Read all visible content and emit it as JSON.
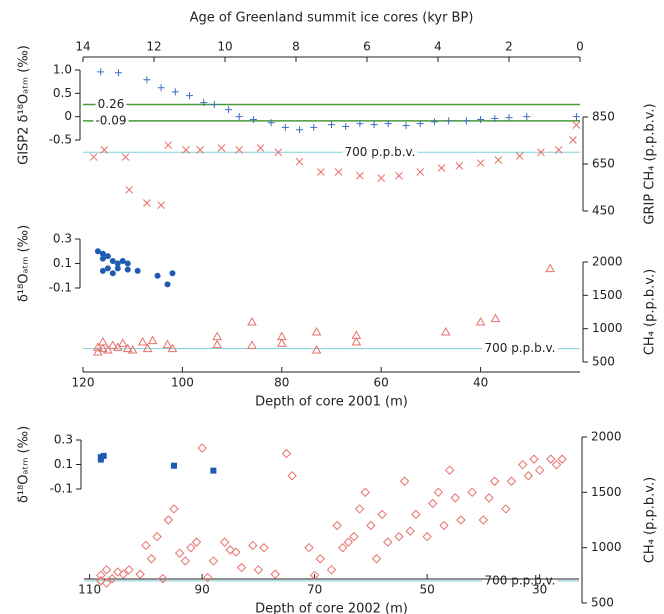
{
  "chart_data": [
    {
      "type": "scatter",
      "xlabel": "Age of Greenland summit ice cores (kyr BP)",
      "xaxis": "top",
      "xlim": [
        14,
        0
      ],
      "xticks": [
        14,
        12,
        10,
        8,
        6,
        4,
        2,
        0
      ],
      "ylabel": "GISP2 δ¹⁸Oₐₜₘ (‰)",
      "ylim": [
        -0.5,
        1.0
      ],
      "yticks": [
        {
          "value": 1.0,
          "label": "1.0"
        },
        0.5,
        0,
        -0.5
      ],
      "y2label": "GRIP CH₄ (p.p.b.v.)",
      "y2lim": [
        450,
        850
      ],
      "y2ticks": [
        850,
        650,
        450
      ],
      "hlines": [
        {
          "value": 0.26,
          "color": "#4a9a3a",
          "axis": "y"
        },
        {
          "value": -0.09,
          "color": "#4a9a3a",
          "axis": "y"
        },
        {
          "value": 700,
          "label": "700 p.p.b.v.",
          "color": "#7fcfd8",
          "axis": "y2"
        }
      ],
      "series": [
        {
          "color": "#3d6fc0",
          "marker": "plus",
          "axis": "y",
          "x": [
            13.5,
            13.0,
            12.2,
            11.8,
            11.4,
            11.0,
            10.6,
            10.3,
            9.9,
            9.6,
            9.2,
            8.7,
            8.3,
            7.9,
            7.5,
            7.0,
            6.6,
            6.2,
            5.8,
            5.4,
            4.9,
            4.5,
            4.1,
            3.7,
            3.2,
            2.8,
            2.4,
            2.0,
            1.5,
            0.1
          ],
          "values": [
            0.96,
            0.94,
            0.79,
            0.62,
            0.53,
            0.45,
            0.3,
            0.26,
            0.15,
            0.0,
            -0.06,
            -0.13,
            -0.23,
            -0.28,
            -0.23,
            -0.17,
            -0.21,
            -0.15,
            -0.17,
            -0.15,
            -0.19,
            -0.15,
            -0.11,
            -0.09,
            -0.09,
            -0.06,
            -0.04,
            -0.02,
            0.0,
            0.0
          ]
        },
        {
          "color": "#e8706a",
          "marker": "cross",
          "axis": "y2",
          "x": [
            13.7,
            13.4,
            12.8,
            12.7,
            12.2,
            11.8,
            11.6,
            11.1,
            10.7,
            10.1,
            9.6,
            9.0,
            8.5,
            7.9,
            7.3,
            6.8,
            6.2,
            5.6,
            5.1,
            4.5,
            3.9,
            3.4,
            2.8,
            2.3,
            1.7,
            1.1,
            0.6,
            0.2,
            0.1
          ],
          "values": [
            680,
            710,
            680,
            540,
            484,
            475,
            730,
            710,
            710,
            718,
            710,
            718,
            700,
            660,
            616,
            616,
            600,
            590,
            600,
            616,
            633,
            642,
            654,
            667,
            684,
            700,
            710,
            752,
            816
          ]
        }
      ]
    },
    {
      "type": "scatter",
      "xlabel": "Depth of core 2001 (m)",
      "xaxis": "bottom",
      "xlim": [
        120,
        20
      ],
      "xticks": [
        120,
        100,
        80,
        60,
        40
      ],
      "ylabel": "δ¹⁸Oₐₜₘ (‰)",
      "ylim": [
        -0.1,
        0.3
      ],
      "yticks": [
        0.3,
        0.1,
        -0.1
      ],
      "y2label": "CH₄ (p.p.b.v.)",
      "y2lim": [
        500,
        2000
      ],
      "y2ticks": [
        2000,
        1500,
        1000,
        500
      ],
      "hlines": [
        {
          "value": 700,
          "label": "700 p.p.b.v.",
          "color": "#7fcfd8",
          "axis": "y2"
        }
      ],
      "series": [
        {
          "color": "#1f5bb0",
          "marker": "dot",
          "axis": "y",
          "x": [
            117,
            116,
            116,
            115,
            114,
            113,
            112,
            111,
            115,
            114,
            116,
            113,
            109,
            105,
            102,
            103,
            111
          ],
          "values": [
            0.2,
            0.18,
            0.14,
            0.16,
            0.12,
            0.1,
            0.12,
            0.1,
            0.06,
            0.02,
            0.04,
            0.06,
            0.04,
            0.0,
            0.02,
            -0.07,
            0.05
          ]
        },
        {
          "color": "#e8706a",
          "marker": "triangle",
          "axis": "y2",
          "x": [
            117,
            116,
            115,
            114,
            113,
            112,
            111,
            110,
            108,
            107,
            106,
            103,
            102,
            93,
            93,
            86,
            86,
            80,
            80,
            73,
            73,
            65,
            65,
            47,
            40,
            37,
            26,
            117,
            116
          ],
          "values": [
            650,
            700,
            680,
            750,
            720,
            780,
            700,
            680,
            800,
            700,
            820,
            760,
            700,
            880,
            760,
            1100,
            750,
            880,
            780,
            950,
            680,
            900,
            800,
            950,
            1100,
            1150,
            1900,
            720,
            800
          ]
        }
      ]
    },
    {
      "type": "scatter",
      "xlabel": "Depth of core 2002 (m)",
      "xaxis": "bottom",
      "xlim": [
        111,
        23
      ],
      "xticks": [
        110,
        90,
        70,
        50,
        30
      ],
      "ylabel": "δ¹⁸Oₐₜₘ (‰)",
      "ylim": [
        -0.1,
        0.3
      ],
      "yticks": [
        0.3,
        0.1,
        -0.1
      ],
      "y2label": "CH₄ (p.p.b.v.)",
      "y2lim": [
        500,
        2000
      ],
      "y2ticks": [
        2000,
        1500,
        1000,
        500
      ],
      "hlines": [
        {
          "value": 700,
          "label": "700 p.p.b.v.",
          "color": "#7fcfd8",
          "axis": "y2"
        }
      ],
      "series": [
        {
          "color": "#1f5bb0",
          "marker": "square",
          "axis": "y",
          "x": [
            108,
            108,
            107.5,
            95,
            88
          ],
          "values": [
            0.16,
            0.14,
            0.17,
            0.09,
            0.05
          ]
        },
        {
          "color": "#e8706a",
          "marker": "diamond",
          "axis": "y2",
          "x": [
            108,
            108,
            107,
            107,
            106,
            105,
            104,
            103,
            101,
            100,
            99,
            98,
            97,
            96,
            95,
            94,
            93,
            92,
            91,
            90,
            89,
            88,
            86,
            85,
            84,
            83,
            81,
            80,
            79,
            77,
            75,
            74,
            71,
            70,
            69,
            67,
            66,
            65,
            64,
            63,
            62,
            61,
            60,
            59,
            58,
            57,
            55,
            54,
            53,
            52,
            50,
            49,
            48,
            47,
            46,
            45,
            44,
            42,
            40,
            39,
            38,
            36,
            35,
            33,
            32,
            31,
            30,
            28,
            27,
            26
          ],
          "values": [
            700,
            750,
            680,
            800,
            720,
            780,
            760,
            800,
            760,
            1020,
            900,
            1100,
            720,
            1250,
            1350,
            950,
            880,
            1000,
            1050,
            1900,
            730,
            880,
            1050,
            980,
            960,
            820,
            1020,
            800,
            1000,
            760,
            1850,
            1650,
            1000,
            750,
            900,
            800,
            1200,
            1000,
            1050,
            1100,
            1350,
            1500,
            1200,
            900,
            1300,
            1050,
            1100,
            1600,
            1150,
            1300,
            1100,
            1400,
            1500,
            1200,
            1700,
            1450,
            1250,
            1500,
            1250,
            1450,
            1600,
            1350,
            1600,
            1750,
            1650,
            1800,
            1700,
            1800,
            1750,
            1800
          ]
        }
      ]
    }
  ]
}
